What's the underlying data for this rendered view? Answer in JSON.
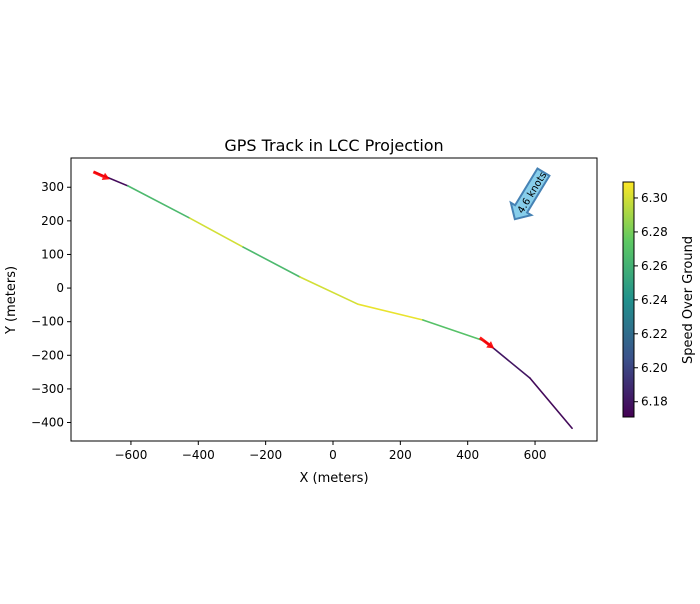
{
  "chart_data": {
    "type": "line",
    "title": "GPS Track in LCC Projection",
    "xlabel": "X (meters)",
    "ylabel": "Y (meters)",
    "xlim": [
      -778,
      784
    ],
    "ylim": [
      -455,
      387
    ],
    "xticks": [
      -600,
      -400,
      -200,
      0,
      200,
      400,
      600
    ],
    "xtick_labels": [
      "−600",
      "−400",
      "−200",
      "0",
      "200",
      "400",
      "600"
    ],
    "yticks": [
      300,
      200,
      100,
      0,
      -100,
      -200,
      -300,
      -400
    ],
    "ytick_labels": [
      "300",
      "200",
      "100",
      "0",
      "−100",
      "−200",
      "−300",
      "−400"
    ],
    "grid": false,
    "track": {
      "x": [
        -707,
        -609,
        -425,
        -267,
        -98,
        74,
        267,
        451,
        585,
        710
      ],
      "y": [
        345,
        304,
        208,
        122,
        33,
        -48,
        -95,
        -158,
        -268,
        -417
      ],
      "segment_speed": [
        6.175,
        6.265,
        6.3,
        6.265,
        6.3,
        6.305,
        6.27,
        6.18,
        6.175
      ]
    },
    "direction_markers": [
      {
        "x": -690,
        "y": 336,
        "dx": 40,
        "dy": -18,
        "color": "#ff0000"
      },
      {
        "x": 455,
        "y": -162,
        "dx": 40,
        "dy": -30,
        "color": "#ff0000"
      }
    ],
    "annotation": {
      "text": "4.6 knots",
      "from": [
        625,
        345
      ],
      "to": [
        540,
        205
      ],
      "color": "#4682b4",
      "fill": "#87ceeb"
    },
    "colorbar": {
      "label": "Speed Over Ground",
      "colormap": "viridis",
      "range": [
        6.171,
        6.3094
      ],
      "ticks": [
        6.18,
        6.2,
        6.22,
        6.24,
        6.26,
        6.28,
        6.3
      ],
      "tick_labels": [
        "6.18",
        "6.20",
        "6.22",
        "6.24",
        "6.26",
        "6.28",
        "6.30"
      ]
    }
  }
}
